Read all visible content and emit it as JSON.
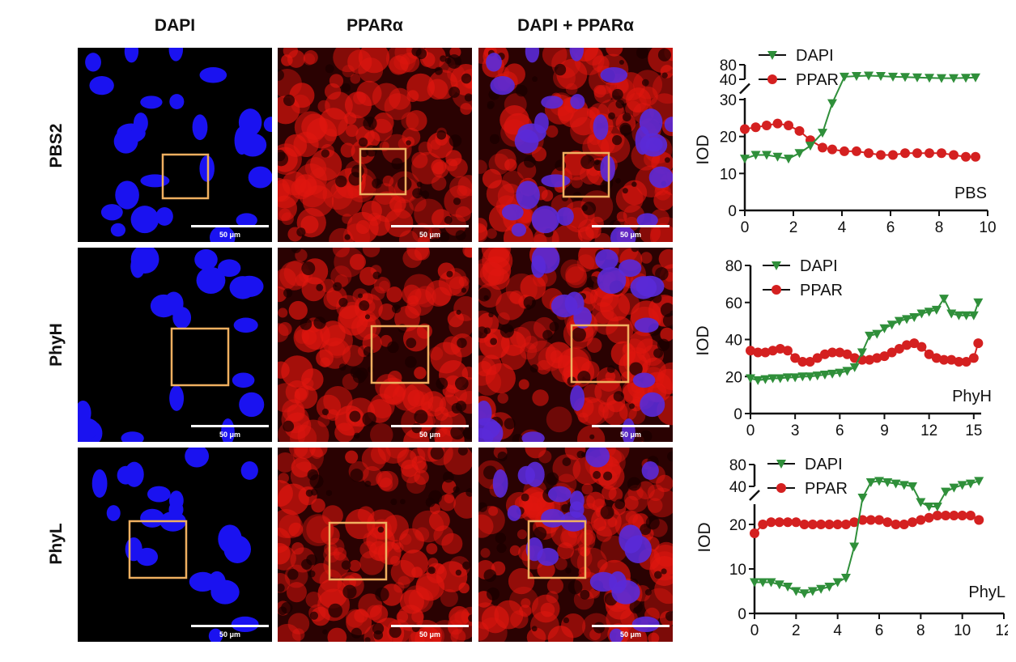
{
  "columns": [
    "DAPI",
    "PPARα",
    "DAPI + PPARα"
  ],
  "rows": [
    "PBS2",
    "PhyH",
    "PhyL"
  ],
  "scale_bar_label": "50 μm",
  "colors": {
    "dapi_nuclei": "#1a12f0",
    "ppar_stain": "#e0160f",
    "roi_box": "#f0b060",
    "dapi_series": "#2f8f3a",
    "ppar_series": "#d42020"
  },
  "chart_data": [
    {
      "type": "line",
      "annotation": "PBS",
      "ylabel": "IOD",
      "xlim": [
        0,
        10
      ],
      "xticks": [
        0,
        2,
        4,
        6,
        8,
        10
      ],
      "yticks_lower": [
        0,
        10,
        20,
        30
      ],
      "yticks_upper": [
        40,
        80
      ],
      "axis_break": true,
      "series": [
        {
          "name": "DAPI",
          "marker": "triangle-down",
          "x": [
            0,
            0.45,
            0.9,
            1.35,
            1.8,
            2.25,
            2.7,
            3.2,
            3.6,
            4.1,
            4.6,
            5.1,
            5.6,
            6.1,
            6.6,
            7.1,
            7.6,
            8.1,
            8.6,
            9.1,
            9.5
          ],
          "y": [
            14,
            15,
            15,
            14.5,
            14,
            15.5,
            17.5,
            21,
            29,
            47,
            49,
            50,
            49,
            47,
            46,
            45,
            44,
            43,
            43,
            44,
            45
          ]
        },
        {
          "name": "PPAR",
          "marker": "circle",
          "x": [
            0,
            0.45,
            0.9,
            1.35,
            1.8,
            2.25,
            2.7,
            3.2,
            3.6,
            4.1,
            4.6,
            5.1,
            5.6,
            6.1,
            6.6,
            7.1,
            7.6,
            8.1,
            8.6,
            9.1,
            9.5
          ],
          "y": [
            22,
            22.5,
            23,
            23.5,
            23,
            21.5,
            19,
            17,
            16.5,
            16,
            16,
            15.5,
            15,
            15,
            15.5,
            15.5,
            15.5,
            15.5,
            15,
            14.5,
            14.5
          ]
        }
      ]
    },
    {
      "type": "line",
      "annotation": "PhyH",
      "ylabel": "IOD",
      "xlim": [
        0,
        15.5
      ],
      "ylim": [
        0,
        80
      ],
      "xticks": [
        0,
        3,
        6,
        9,
        12,
        15
      ],
      "yticks": [
        0,
        20,
        40,
        60,
        80
      ],
      "series": [
        {
          "name": "DAPI",
          "marker": "triangle-down",
          "x": [
            0,
            0.5,
            1,
            1.5,
            2,
            2.5,
            3,
            3.5,
            4,
            4.5,
            5,
            5.5,
            6,
            6.5,
            7,
            7.5,
            8,
            8.5,
            9,
            9.5,
            10,
            10.5,
            11,
            11.5,
            12,
            12.5,
            13,
            13.5,
            14,
            14.5,
            15,
            15.3
          ],
          "y": [
            19,
            18,
            18.5,
            19,
            19,
            19.5,
            19.5,
            20,
            20,
            20.5,
            21,
            21.5,
            22,
            23,
            25,
            33,
            42,
            43,
            46,
            48,
            50,
            51,
            52,
            54,
            55,
            56,
            62,
            54,
            53,
            53,
            53,
            60
          ]
        },
        {
          "name": "PPAR",
          "marker": "circle",
          "x": [
            0,
            0.5,
            1,
            1.5,
            2,
            2.5,
            3,
            3.5,
            4,
            4.5,
            5,
            5.5,
            6,
            6.5,
            7,
            7.5,
            8,
            8.5,
            9,
            9.5,
            10,
            10.5,
            11,
            11.5,
            12,
            12.5,
            13,
            13.5,
            14,
            14.5,
            15,
            15.3
          ],
          "y": [
            34,
            33,
            33,
            34,
            35,
            34,
            30,
            28,
            28,
            30,
            32,
            33,
            33,
            32,
            30,
            29,
            29,
            30,
            31,
            33,
            35,
            37,
            38,
            36,
            32,
            30,
            29,
            29,
            28,
            28,
            30,
            38
          ]
        }
      ]
    },
    {
      "type": "line",
      "annotation": "PhyL",
      "ylabel": "IOD",
      "xlim": [
        0,
        12
      ],
      "xticks": [
        0,
        2,
        4,
        6,
        8,
        10,
        12
      ],
      "yticks_lower": [
        0,
        10,
        20
      ],
      "yticks_upper": [
        40,
        80
      ],
      "axis_break": true,
      "series": [
        {
          "name": "DAPI",
          "marker": "triangle-down",
          "x": [
            0,
            0.4,
            0.8,
            1.2,
            1.6,
            2,
            2.4,
            2.8,
            3.2,
            3.6,
            4,
            4.4,
            4.8,
            5.2,
            5.6,
            6,
            6.4,
            6.8,
            7.2,
            7.6,
            8,
            8.4,
            8.8,
            9.2,
            9.6,
            10,
            10.4,
            10.8
          ],
          "y": [
            7,
            7,
            7,
            6.5,
            6,
            5,
            4.5,
            5,
            5.5,
            6,
            7,
            8,
            15,
            26,
            41,
            42,
            41,
            40,
            39,
            38,
            25,
            24,
            24,
            34,
            37,
            39,
            40,
            42
          ]
        },
        {
          "name": "PPAR",
          "marker": "circle",
          "x": [
            0,
            0.4,
            0.8,
            1.2,
            1.6,
            2,
            2.4,
            2.8,
            3.2,
            3.6,
            4,
            4.4,
            4.8,
            5.2,
            5.6,
            6,
            6.4,
            6.8,
            7.2,
            7.6,
            8,
            8.4,
            8.8,
            9.2,
            9.6,
            10,
            10.4,
            10.8
          ],
          "y": [
            18,
            20,
            20.5,
            20.5,
            20.5,
            20.5,
            20,
            20,
            20,
            20,
            20,
            20,
            20.5,
            21,
            21,
            21,
            20.5,
            20,
            20,
            20.5,
            21,
            21.5,
            22,
            22,
            22,
            22,
            22,
            21
          ]
        }
      ]
    }
  ]
}
